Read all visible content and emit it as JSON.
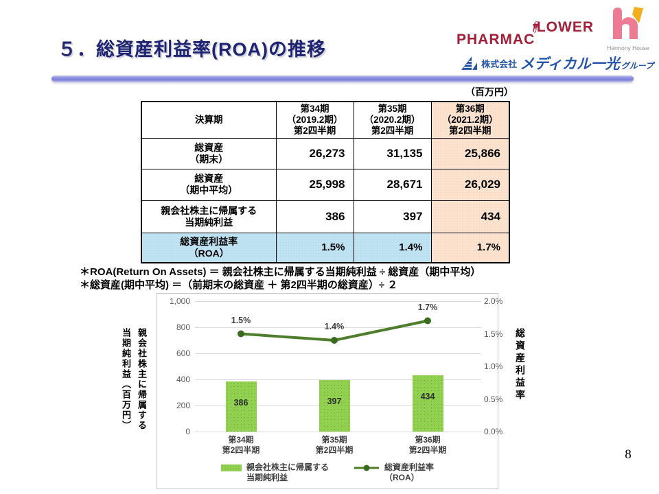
{
  "header": {
    "title": "５．総資産利益率(ROA)の推移",
    "unit_label": "（百万円）",
    "page_number": "8"
  },
  "logos": {
    "pharmacy_flower": {
      "part1": "PHARMAC",
      "f": "f",
      "part2": "LOWER"
    },
    "harmony_house": {
      "label": "Harmony House"
    },
    "medical_ikkou": {
      "prefix": "株式会社",
      "name": "メディカル一光",
      "suffix": "グループ"
    }
  },
  "table": {
    "col_header_label": "決算期",
    "col_headers": [
      "第34期\n（2019.2期）\n第2四半期",
      "第35期\n（2020.2期）\n第2四半期",
      "第36期\n（2021.2期）\n第2四半期"
    ],
    "rows": [
      {
        "label": "総資産\n（期末）",
        "values": [
          "26,273",
          "31,135",
          "25,866"
        ]
      },
      {
        "label": "総資産\n（期中平均）",
        "values": [
          "25,998",
          "28,671",
          "26,029"
        ]
      },
      {
        "label": "親会社株主に帰属する\n当期純利益",
        "values": [
          "386",
          "397",
          "434"
        ]
      },
      {
        "label": "総資産利益率\n（ROA）",
        "values": [
          "1.5%",
          "1.4%",
          "1.7%"
        ]
      }
    ]
  },
  "notes": {
    "line1": "＊ROA(Return On Assets) ＝ 親会社株主に帰属する当期純利益 ÷ 総資産（期中平均）",
    "line2": "＊総資産(期中平均) ＝（前期末の総資産 ＋ 第2四半期の総資産）÷ ２"
  },
  "chart_data": {
    "type": "bar+line",
    "categories": [
      "第34期\n第2四半期",
      "第35期\n第2四半期",
      "第36期\n第2四半期"
    ],
    "series": [
      {
        "name": "親会社株主に帰属する当期純利益",
        "type": "bar",
        "axis": "left",
        "values": [
          386,
          397,
          434
        ],
        "color": "#92D050"
      },
      {
        "name": "総資産利益率（ROA）",
        "type": "line",
        "axis": "right",
        "values": [
          1.5,
          1.4,
          1.7
        ],
        "point_labels": [
          "1.5%",
          "1.4%",
          "1.7%"
        ],
        "color": "#4E7D2B",
        "marker_color": "#3A6B21"
      }
    ],
    "left_axis": {
      "title_lines": [
        "親会社株主に帰属する",
        "当期純利益（百万円）"
      ],
      "ticks": [
        "1,000",
        "800",
        "600",
        "400",
        "200",
        "0"
      ],
      "min": 0,
      "max": 1000
    },
    "right_axis": {
      "title": "総資産利益率",
      "ticks": [
        "2.0%",
        "1.5%",
        "1.0%",
        "0.5%",
        "0.0%"
      ],
      "min": 0,
      "max": 2.0
    },
    "grid": true,
    "legend_position": "bottom-inside",
    "legend": [
      {
        "swatch": "bar",
        "label": "親会社株主に帰属する\n当期純利益"
      },
      {
        "swatch": "line",
        "label": "総資産利益率\n（ROA）"
      }
    ]
  }
}
